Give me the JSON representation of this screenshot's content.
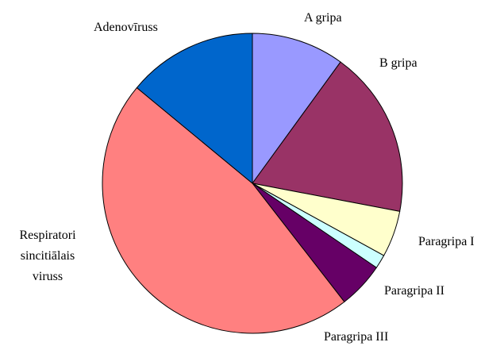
{
  "chart_data": {
    "type": "pie",
    "categories": [
      "A gripa",
      "B gripa",
      "Paragripa I",
      "Paragripa II",
      "Paragripa III",
      "Respiratori sincitiālais viruss",
      "Adenovīruss"
    ],
    "values": [
      10,
      18,
      5,
      1.5,
      5,
      46.5,
      14
    ],
    "colors": [
      "#9999ff",
      "#993366",
      "#ffffcc",
      "#ccffff",
      "#660066",
      "#ff8080",
      "#0066cc"
    ]
  }
}
